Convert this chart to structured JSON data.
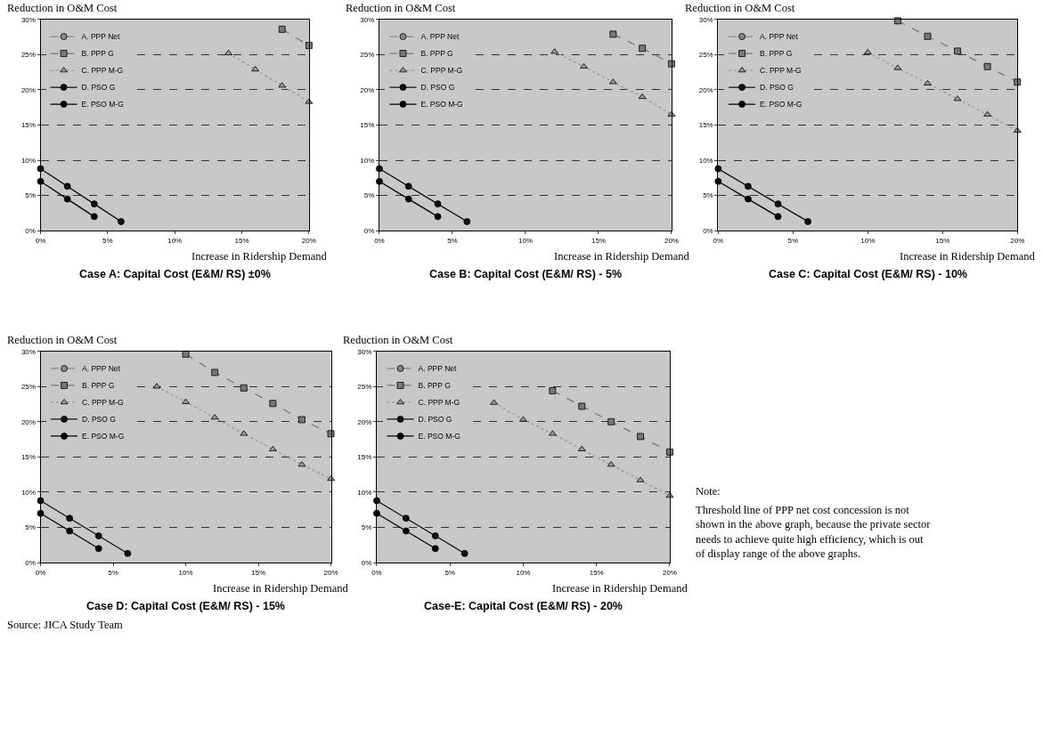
{
  "chart_data": [
    {
      "type": "line",
      "title": "Case A: Capital Cost (E&M/ RS) ±0%",
      "xlabel": "Increase in Ridership Demand",
      "ylabel": "Reduction in O&M Cost",
      "x": [
        0,
        2,
        4,
        6,
        8,
        10,
        12,
        14,
        16,
        18,
        20
      ],
      "xlim": [
        0,
        20
      ],
      "ylim": [
        0,
        30
      ],
      "xticks": [
        {
          "value": 0,
          "label": "0%"
        },
        {
          "value": 5,
          "label": "5%"
        },
        {
          "value": 10,
          "label": "10%"
        },
        {
          "value": 15,
          "label": "15%"
        },
        {
          "value": 20,
          "label": "20%"
        }
      ],
      "yticks": [
        {
          "value": 0,
          "label": "0%"
        },
        {
          "value": 5,
          "label": "5%"
        },
        {
          "value": 10,
          "label": "10%"
        },
        {
          "value": 15,
          "label": "15%"
        },
        {
          "value": 20,
          "label": "20%"
        },
        {
          "value": 25,
          "label": "25%"
        },
        {
          "value": 30,
          "label": "30%"
        }
      ],
      "grid": "y",
      "legend": "top left",
      "series": [
        {
          "name": "A. PPP Net",
          "color": "#888888",
          "marker": "circle",
          "line_style": "dashed",
          "values": [
            null,
            null,
            null,
            null,
            null,
            null,
            null,
            null,
            null,
            null,
            null
          ]
        },
        {
          "name": "B. PPP G",
          "color": "#777777",
          "marker": "square",
          "line_style": "dashed",
          "values": [
            null,
            null,
            null,
            null,
            null,
            null,
            null,
            null,
            null,
            28.6,
            26.3
          ]
        },
        {
          "name": "C. PPP M-G",
          "color": "#999999",
          "marker": "triangle",
          "line_style": "dotted",
          "values": [
            null,
            null,
            null,
            null,
            null,
            null,
            null,
            25.2,
            22.9,
            20.6,
            18.3
          ]
        },
        {
          "name": "D. PSO G",
          "color": "#111111",
          "marker": "circle",
          "line_style": "solid",
          "values": [
            8.8,
            6.3,
            3.8,
            1.3,
            null,
            null,
            null,
            null,
            null,
            null,
            null
          ]
        },
        {
          "name": "E. PSO M-G",
          "color": "#000000",
          "marker": "circle",
          "line_style": "solid",
          "values": [
            7.0,
            4.5,
            2.0,
            null,
            null,
            null,
            null,
            null,
            null,
            null,
            null
          ]
        }
      ]
    },
    {
      "type": "line",
      "title": "Case B: Capital Cost (E&M/ RS) - 5%",
      "xlabel": "Increase in Ridership Demand",
      "ylabel": "Reduction in O&M Cost",
      "x": [
        0,
        2,
        4,
        6,
        8,
        10,
        12,
        14,
        16,
        18,
        20
      ],
      "xlim": [
        0,
        20
      ],
      "ylim": [
        0,
        30
      ],
      "xticks": [
        {
          "value": 0,
          "label": "0%"
        },
        {
          "value": 5,
          "label": "5%"
        },
        {
          "value": 10,
          "label": "10%"
        },
        {
          "value": 15,
          "label": "15%"
        },
        {
          "value": 20,
          "label": "20%"
        }
      ],
      "yticks": [
        {
          "value": 0,
          "label": "0%"
        },
        {
          "value": 5,
          "label": "5%"
        },
        {
          "value": 10,
          "label": "10%"
        },
        {
          "value": 15,
          "label": "15%"
        },
        {
          "value": 20,
          "label": "20%"
        },
        {
          "value": 25,
          "label": "25%"
        },
        {
          "value": 30,
          "label": "30%"
        }
      ],
      "grid": "y",
      "legend": "top left",
      "series": [
        {
          "name": "A. PPP Net",
          "color": "#888888",
          "marker": "circle",
          "line_style": "dashed",
          "values": [
            null,
            null,
            null,
            null,
            null,
            null,
            null,
            null,
            null,
            null,
            null
          ]
        },
        {
          "name": "B. PPP G",
          "color": "#777777",
          "marker": "square",
          "line_style": "dashed",
          "values": [
            null,
            null,
            null,
            null,
            null,
            null,
            null,
            null,
            27.9,
            25.9,
            23.7
          ]
        },
        {
          "name": "C. PPP M-G",
          "color": "#999999",
          "marker": "triangle",
          "line_style": "dotted",
          "values": [
            null,
            null,
            null,
            null,
            null,
            null,
            25.4,
            23.3,
            21.1,
            19.0,
            16.5
          ]
        },
        {
          "name": "D. PSO G",
          "color": "#111111",
          "marker": "circle",
          "line_style": "solid",
          "values": [
            8.8,
            6.3,
            3.8,
            1.3,
            null,
            null,
            null,
            null,
            null,
            null,
            null
          ]
        },
        {
          "name": "E. PSO M-G",
          "color": "#000000",
          "marker": "circle",
          "line_style": "solid",
          "values": [
            7.0,
            4.5,
            2.0,
            null,
            null,
            null,
            null,
            null,
            null,
            null,
            null
          ]
        }
      ]
    },
    {
      "type": "line",
      "title": "Case C: Capital Cost (E&M/ RS) - 10%",
      "xlabel": "Increase in Ridership Demand",
      "ylabel": "Reduction in O&M Cost",
      "x": [
        0,
        2,
        4,
        6,
        8,
        10,
        12,
        14,
        16,
        18,
        20
      ],
      "xlim": [
        0,
        20
      ],
      "ylim": [
        0,
        30
      ],
      "xticks": [
        {
          "value": 0,
          "label": "0%"
        },
        {
          "value": 5,
          "label": "5%"
        },
        {
          "value": 10,
          "label": "10%"
        },
        {
          "value": 15,
          "label": "15%"
        },
        {
          "value": 20,
          "label": "20%"
        }
      ],
      "yticks": [
        {
          "value": 0,
          "label": "0%"
        },
        {
          "value": 5,
          "label": "5%"
        },
        {
          "value": 10,
          "label": "10%"
        },
        {
          "value": 15,
          "label": "15%"
        },
        {
          "value": 20,
          "label": "20%"
        },
        {
          "value": 25,
          "label": "25%"
        },
        {
          "value": 30,
          "label": "30%"
        }
      ],
      "grid": "y",
      "legend": "top left",
      "series": [
        {
          "name": "A. PPP Net",
          "color": "#888888",
          "marker": "circle",
          "line_style": "dashed",
          "values": [
            null,
            null,
            null,
            null,
            null,
            null,
            null,
            null,
            null,
            null,
            null
          ]
        },
        {
          "name": "B. PPP G",
          "color": "#777777",
          "marker": "square",
          "line_style": "dashed",
          "values": [
            null,
            null,
            null,
            null,
            null,
            null,
            29.8,
            27.6,
            25.5,
            23.3,
            21.1
          ]
        },
        {
          "name": "C. PPP M-G",
          "color": "#999999",
          "marker": "triangle",
          "line_style": "dotted",
          "values": [
            null,
            null,
            null,
            null,
            null,
            25.3,
            23.1,
            20.9,
            18.7,
            16.5,
            14.2
          ]
        },
        {
          "name": "D. PSO G",
          "color": "#111111",
          "marker": "circle",
          "line_style": "solid",
          "values": [
            8.8,
            6.3,
            3.8,
            1.3,
            null,
            null,
            null,
            null,
            null,
            null,
            null
          ]
        },
        {
          "name": "E. PSO M-G",
          "color": "#000000",
          "marker": "circle",
          "line_style": "solid",
          "values": [
            7.0,
            4.5,
            2.0,
            null,
            null,
            null,
            null,
            null,
            null,
            null,
            null
          ]
        }
      ]
    },
    {
      "type": "line",
      "title": "Case D: Capital Cost (E&M/ RS) - 15%",
      "xlabel": "Increase in Ridership Demand",
      "ylabel": "Reduction in O&M Cost",
      "annotations": [
        "Source: JICA Study Team"
      ],
      "x": [
        0,
        2,
        4,
        6,
        8,
        10,
        12,
        14,
        16,
        18,
        20
      ],
      "xlim": [
        0,
        20
      ],
      "ylim": [
        0,
        30
      ],
      "xticks": [
        {
          "value": 0,
          "label": "0%"
        },
        {
          "value": 5,
          "label": "5%"
        },
        {
          "value": 10,
          "label": "10%"
        },
        {
          "value": 15,
          "label": "15%"
        },
        {
          "value": 20,
          "label": "20%"
        }
      ],
      "yticks": [
        {
          "value": 0,
          "label": "0%"
        },
        {
          "value": 5,
          "label": "5%"
        },
        {
          "value": 10,
          "label": "10%"
        },
        {
          "value": 15,
          "label": "15%"
        },
        {
          "value": 20,
          "label": "20%"
        },
        {
          "value": 25,
          "label": "25%"
        },
        {
          "value": 30,
          "label": "30%"
        }
      ],
      "grid": "y",
      "legend": "top left",
      "series": [
        {
          "name": "A. PPP Net",
          "color": "#888888",
          "marker": "circle",
          "line_style": "dashed",
          "values": [
            null,
            null,
            null,
            null,
            null,
            null,
            null,
            null,
            null,
            null,
            null
          ]
        },
        {
          "name": "B. PPP G",
          "color": "#777777",
          "marker": "square",
          "line_style": "dashed",
          "values": [
            null,
            null,
            null,
            null,
            null,
            29.6,
            27.0,
            24.8,
            22.6,
            20.3,
            18.3
          ]
        },
        {
          "name": "C. PPP M-G",
          "color": "#999999",
          "marker": "triangle",
          "line_style": "dotted",
          "values": [
            null,
            null,
            null,
            null,
            25.0,
            22.8,
            20.6,
            18.3,
            16.1,
            13.9,
            11.9
          ]
        },
        {
          "name": "D. PSO G",
          "color": "#111111",
          "marker": "circle",
          "line_style": "solid",
          "values": [
            8.8,
            6.3,
            3.8,
            1.3,
            null,
            null,
            null,
            null,
            null,
            null,
            null
          ]
        },
        {
          "name": "E. PSO M-G",
          "color": "#000000",
          "marker": "circle",
          "line_style": "solid",
          "values": [
            7.0,
            4.5,
            2.0,
            null,
            null,
            null,
            null,
            null,
            null,
            null,
            null
          ]
        }
      ]
    },
    {
      "type": "line",
      "title": "Case-E: Capital Cost (E&M/ RS) - 20%",
      "xlabel": "Increase in Ridership Demand",
      "ylabel": "Reduction in O&M Cost",
      "x": [
        0,
        2,
        4,
        6,
        8,
        10,
        12,
        14,
        16,
        18,
        20
      ],
      "xlim": [
        0,
        20
      ],
      "ylim": [
        0,
        30
      ],
      "xticks": [
        {
          "value": 0,
          "label": "0%"
        },
        {
          "value": 5,
          "label": "5%"
        },
        {
          "value": 10,
          "label": "10%"
        },
        {
          "value": 15,
          "label": "15%"
        },
        {
          "value": 20,
          "label": "20%"
        }
      ],
      "yticks": [
        {
          "value": 0,
          "label": "0%"
        },
        {
          "value": 5,
          "label": "5%"
        },
        {
          "value": 10,
          "label": "10%"
        },
        {
          "value": 15,
          "label": "15%"
        },
        {
          "value": 20,
          "label": "20%"
        },
        {
          "value": 25,
          "label": "25%"
        },
        {
          "value": 30,
          "label": "30%"
        }
      ],
      "grid": "y",
      "legend": "top left",
      "series": [
        {
          "name": "A. PPP Net",
          "color": "#888888",
          "marker": "circle",
          "line_style": "dashed",
          "values": [
            null,
            null,
            null,
            null,
            null,
            null,
            null,
            null,
            null,
            null,
            null
          ]
        },
        {
          "name": "B. PPP G",
          "color": "#777777",
          "marker": "square",
          "line_style": "dashed",
          "values": [
            null,
            null,
            null,
            null,
            null,
            null,
            24.4,
            22.2,
            20.0,
            17.9,
            15.7
          ]
        },
        {
          "name": "C. PPP M-G",
          "color": "#999999",
          "marker": "triangle",
          "line_style": "dotted",
          "values": [
            null,
            null,
            null,
            null,
            22.7,
            20.3,
            18.3,
            16.1,
            13.9,
            11.7,
            9.5
          ]
        },
        {
          "name": "D. PSO G",
          "color": "#111111",
          "marker": "circle",
          "line_style": "solid",
          "values": [
            8.8,
            6.3,
            3.8,
            1.3,
            null,
            null,
            null,
            null,
            null,
            null,
            null
          ]
        },
        {
          "name": "E. PSO M-G",
          "color": "#000000",
          "marker": "circle",
          "line_style": "solid",
          "values": [
            7.0,
            4.5,
            2.0,
            null,
            null,
            null,
            null,
            null,
            null,
            null,
            null
          ]
        }
      ]
    },
    {
      "type": "other",
      "annotations": [
        "Note:",
        "Threshold line of PPP net cost concession is not shown in the above graph, because the private sector needs to achieve quite high efficiency, which is out of display range of the above graphs."
      ]
    }
  ]
}
